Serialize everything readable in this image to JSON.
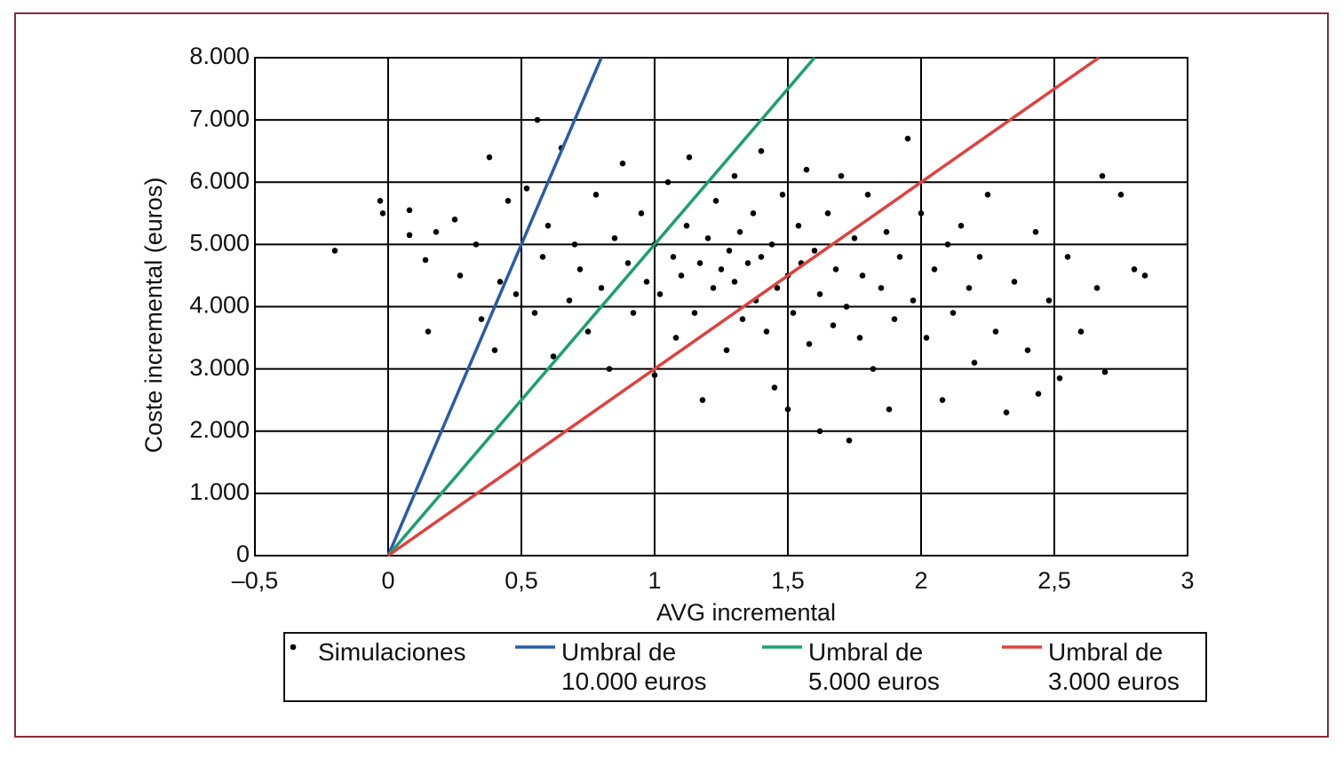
{
  "chart_data": {
    "type": "scatter",
    "xlabel": "AVG incremental",
    "ylabel": "Coste incremental (euros)",
    "xlim": [
      -0.5,
      3
    ],
    "ylim": [
      0,
      8000
    ],
    "xticks": [
      {
        "value": -0.5,
        "label": "–0,5"
      },
      0,
      {
        "value": 0.5,
        "label": "0,5"
      },
      1,
      {
        "value": 1.5,
        "label": "1,5"
      },
      2,
      {
        "value": 2.5,
        "label": "2,5"
      },
      3
    ],
    "yticks": [
      0,
      {
        "value": 1000,
        "label": "1.000"
      },
      {
        "value": 2000,
        "label": "2.000"
      },
      {
        "value": 3000,
        "label": "3.000"
      },
      {
        "value": 4000,
        "label": "4.000"
      },
      {
        "value": 5000,
        "label": "5.000"
      },
      {
        "value": 6000,
        "label": "6.000"
      },
      {
        "value": 7000,
        "label": "7.000"
      },
      {
        "value": 8000,
        "label": "8.000"
      }
    ],
    "grid": true,
    "series": [
      {
        "name": "Simulaciones",
        "kind": "scatter",
        "color": "#000000",
        "x": [
          -0.2,
          -0.03,
          -0.02,
          0.08,
          0.08,
          0.15,
          0.14,
          0.18,
          0.25,
          0.27,
          0.33,
          0.35,
          0.38,
          0.4,
          0.42,
          0.45,
          0.48,
          0.52,
          0.55,
          0.56,
          0.58,
          0.6,
          0.62,
          0.65,
          0.68,
          0.7,
          0.72,
          0.75,
          0.78,
          0.8,
          0.83,
          0.85,
          0.88,
          0.9,
          0.92,
          0.95,
          0.97,
          1.0,
          1.0,
          1.02,
          1.05,
          1.07,
          1.08,
          1.1,
          1.12,
          1.13,
          1.15,
          1.17,
          1.18,
          1.2,
          1.22,
          1.23,
          1.25,
          1.27,
          1.28,
          1.3,
          1.3,
          1.32,
          1.33,
          1.35,
          1.37,
          1.38,
          1.4,
          1.4,
          1.42,
          1.44,
          1.45,
          1.46,
          1.48,
          1.5,
          1.5,
          1.52,
          1.54,
          1.55,
          1.57,
          1.58,
          1.6,
          1.62,
          1.62,
          1.65,
          1.67,
          1.68,
          1.7,
          1.72,
          1.73,
          1.75,
          1.77,
          1.78,
          1.8,
          1.82,
          1.85,
          1.87,
          1.88,
          1.9,
          1.92,
          1.95,
          1.97,
          2.0,
          2.02,
          2.05,
          2.08,
          2.1,
          2.12,
          2.15,
          2.18,
          2.2,
          2.22,
          2.25,
          2.28,
          2.32,
          2.35,
          2.4,
          2.43,
          2.44,
          2.48,
          2.52,
          2.55,
          2.6,
          2.66,
          2.68,
          2.69,
          2.75,
          2.8,
          2.84
        ],
        "values": [
          4900,
          5700,
          5500,
          5550,
          5150,
          3600,
          4750,
          5200,
          5400,
          4500,
          5000,
          3800,
          6400,
          3300,
          4400,
          5700,
          4200,
          5900,
          3900,
          7000,
          4800,
          5300,
          3200,
          6550,
          4100,
          5000,
          4600,
          3600,
          5800,
          4300,
          3000,
          5100,
          6300,
          4700,
          3900,
          5500,
          4400,
          2900,
          5000,
          4200,
          6000,
          4800,
          3500,
          4500,
          5300,
          6400,
          3900,
          4700,
          2500,
          5100,
          4300,
          5700,
          4600,
          3300,
          4900,
          6100,
          4400,
          5200,
          3800,
          4700,
          5500,
          4100,
          6500,
          4800,
          3600,
          5000,
          2700,
          4300,
          5800,
          4500,
          2350,
          3900,
          5300,
          4700,
          6200,
          3400,
          4900,
          2000,
          4200,
          5500,
          3700,
          4600,
          6100,
          4000,
          1850,
          5100,
          3500,
          4500,
          5800,
          3000,
          4300,
          5200,
          2350,
          3800,
          4800,
          6700,
          4100,
          5500,
          3500,
          4600,
          2500,
          5000,
          3900,
          5300,
          4300,
          3100,
          4800,
          5800,
          3600,
          2300,
          4400,
          3300,
          5200,
          2600,
          4100,
          2850,
          4800,
          3600,
          4300,
          6100,
          2950,
          5800,
          4600,
          4500
        ]
      },
      {
        "name": "Umbral de 10.000 euros",
        "kind": "line",
        "color": "#2a5ca8",
        "x": [
          0,
          0.8
        ],
        "values": [
          0,
          8000
        ]
      },
      {
        "name": "Umbral de 5.000 euros",
        "kind": "line",
        "color": "#1aa06e",
        "x": [
          0,
          1.6
        ],
        "values": [
          0,
          8000
        ]
      },
      {
        "name": "Umbral de 3.000 euros",
        "kind": "line",
        "color": "#e0403f",
        "x": [
          0,
          2.667
        ],
        "values": [
          0,
          8000
        ]
      }
    ]
  }
}
